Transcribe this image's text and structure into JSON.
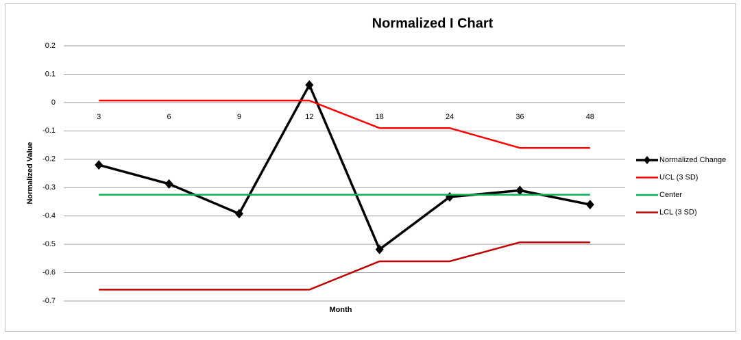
{
  "chart_data": {
    "type": "line",
    "title": "Normalized I Chart",
    "x_label": "Month",
    "y_label": "Normalized Value",
    "categories": [
      "3",
      "6",
      "9",
      "12",
      "18",
      "24",
      "36",
      "48"
    ],
    "series": [
      {
        "name": "Normalized Change",
        "color": "#000000",
        "marker": "diamond",
        "values": [
          -0.22,
          -0.287,
          -0.392,
          0.062,
          -0.518,
          -0.333,
          -0.31,
          -0.36
        ]
      },
      {
        "name": "UCL (3 SD)",
        "color": "#ff0000",
        "values": [
          0.007,
          0.007,
          0.007,
          0.007,
          -0.09,
          -0.09,
          -0.16,
          -0.16
        ]
      },
      {
        "name": "Center",
        "color": "#00b050",
        "values": [
          -0.325,
          -0.325,
          -0.325,
          -0.325,
          -0.325,
          -0.325,
          -0.325,
          -0.325
        ]
      },
      {
        "name": "LCL (3 SD)",
        "color": "#c00000",
        "values": [
          -0.66,
          -0.66,
          -0.66,
          -0.66,
          -0.56,
          -0.56,
          -0.493,
          -0.493
        ]
      }
    ],
    "ylim": [
      -0.7,
      0.2
    ],
    "yticks": [
      0.2,
      0.1,
      0,
      -0.1,
      -0.2,
      -0.3,
      -0.4,
      -0.5,
      -0.6,
      -0.7
    ],
    "grid": true,
    "legend": "right"
  }
}
